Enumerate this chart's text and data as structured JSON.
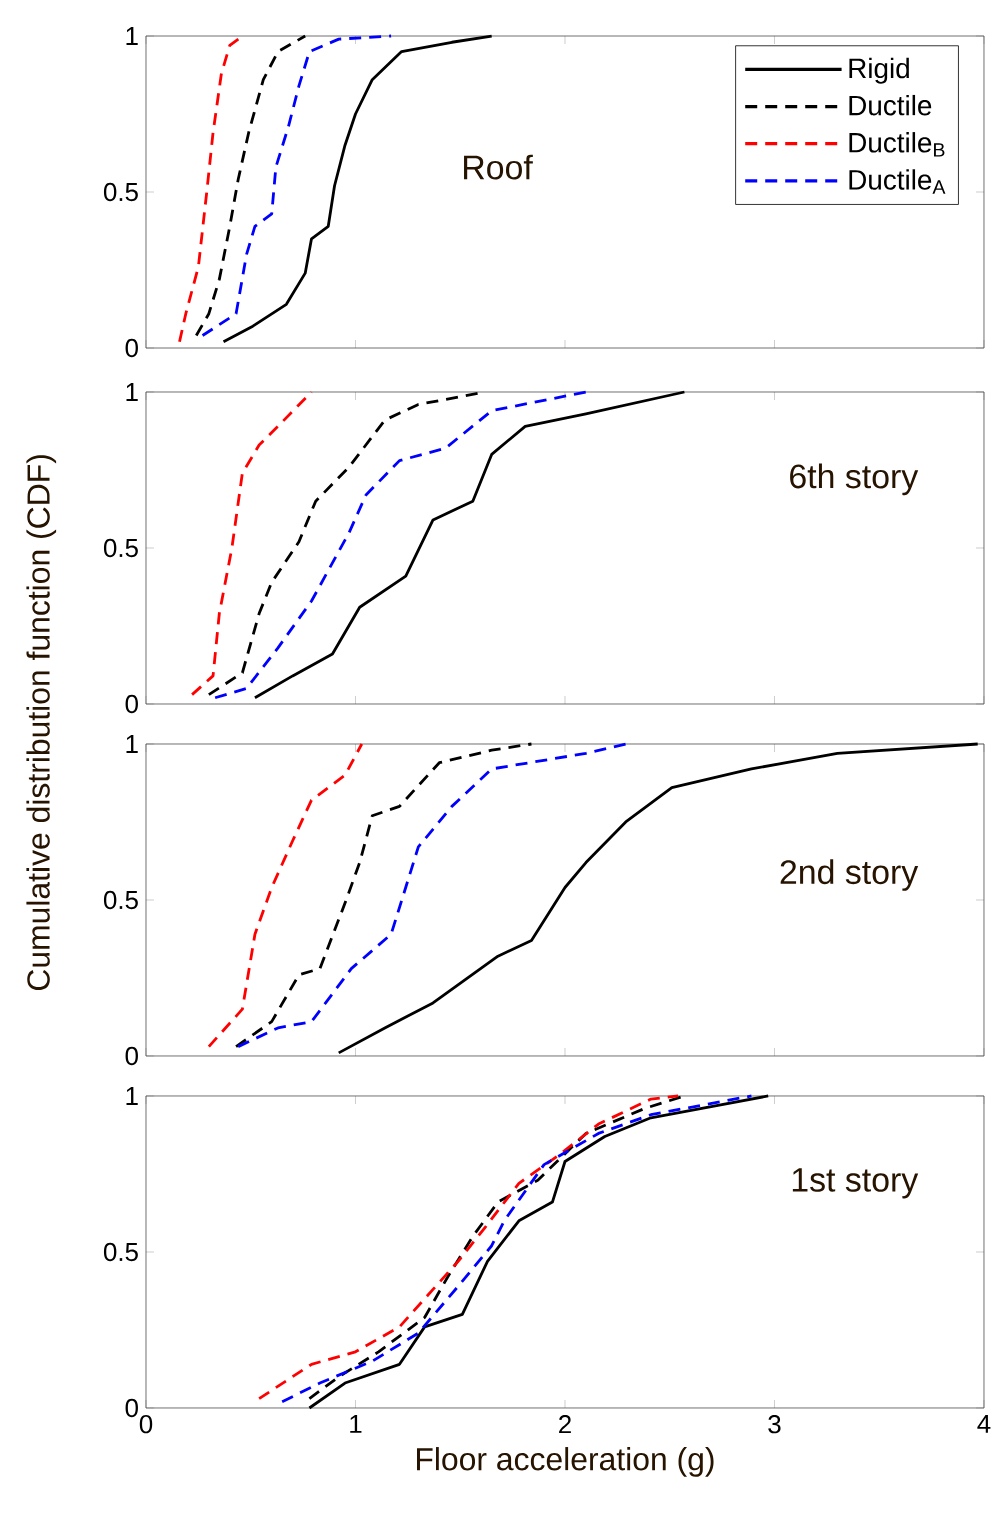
{
  "chart_data": [
    {
      "type": "line",
      "xlim": [
        0,
        4
      ],
      "ylim": [
        0,
        1
      ],
      "xticks": [
        0,
        1,
        2,
        3,
        4
      ],
      "yticks": [
        0,
        0.5,
        1
      ],
      "tick_labels": "y",
      "legend": "top right",
      "line_style": "dashed",
      "ylabel": "Cumulative distribution function (CDF)",
      "annotations": [
        "Roof"
      ],
      "series": [
        {
          "name": "Rigid",
          "color": "#000000",
          "line_style": "solid",
          "x": [
            0.37,
            0.51,
            0.67,
            0.76,
            0.79,
            0.87,
            0.9,
            0.95,
            1.0,
            1.08,
            1.22,
            1.46,
            1.65
          ],
          "values": [
            0.02,
            0.07,
            0.14,
            0.24,
            0.35,
            0.39,
            0.52,
            0.65,
            0.75,
            0.86,
            0.95,
            0.98,
            1.0
          ]
        },
        {
          "name": "Ductile",
          "color": "#000000",
          "x": [
            0.24,
            0.3,
            0.35,
            0.4,
            0.44,
            0.49,
            0.56,
            0.63,
            0.76
          ],
          "values": [
            0.04,
            0.11,
            0.22,
            0.39,
            0.54,
            0.69,
            0.86,
            0.95,
            1.0
          ]
        },
        {
          "name": "Ductile$_{B}$",
          "color": "#ff0000",
          "x": [
            0.16,
            0.19,
            0.25,
            0.29,
            0.32,
            0.36,
            0.4,
            0.46
          ],
          "values": [
            0.02,
            0.11,
            0.26,
            0.5,
            0.69,
            0.88,
            0.97,
            1.0
          ]
        },
        {
          "name": "Ductile$_{A}$",
          "color": "#0000ff",
          "x": [
            0.27,
            0.43,
            0.48,
            0.52,
            0.6,
            0.62,
            0.68,
            0.73,
            0.78,
            0.92,
            1.17
          ],
          "values": [
            0.04,
            0.11,
            0.3,
            0.39,
            0.43,
            0.58,
            0.71,
            0.84,
            0.95,
            0.99,
            1.0
          ]
        }
      ]
    },
    {
      "type": "line",
      "xlim": [
        0,
        4
      ],
      "ylim": [
        0,
        1
      ],
      "xticks": [
        0,
        1,
        2,
        3,
        4
      ],
      "yticks": [
        0,
        0.5,
        1
      ],
      "tick_labels": "y",
      "line_style": "dashed",
      "annotations": [
        "6th story"
      ],
      "series": [
        {
          "color": "#000000",
          "line_style": "solid",
          "x": [
            0.52,
            0.7,
            0.89,
            1.02,
            1.24,
            1.37,
            1.56,
            1.65,
            1.81,
            2.1,
            2.57
          ],
          "values": [
            0.02,
            0.09,
            0.16,
            0.31,
            0.41,
            0.59,
            0.65,
            0.8,
            0.89,
            0.93,
            1.0
          ]
        },
        {
          "color": "#000000",
          "x": [
            0.3,
            0.46,
            0.54,
            0.6,
            0.73,
            0.81,
            0.97,
            1.14,
            1.3,
            1.62
          ],
          "values": [
            0.03,
            0.1,
            0.29,
            0.39,
            0.52,
            0.65,
            0.76,
            0.91,
            0.96,
            1.0
          ]
        },
        {
          "color": "#ff0000",
          "x": [
            0.22,
            0.32,
            0.35,
            0.41,
            0.46,
            0.54,
            0.63,
            0.79
          ],
          "values": [
            0.03,
            0.09,
            0.29,
            0.5,
            0.74,
            0.83,
            0.89,
            1.0
          ]
        },
        {
          "color": "#0000ff",
          "x": [
            0.33,
            0.48,
            0.63,
            0.79,
            0.97,
            1.05,
            1.21,
            1.43,
            1.65,
            2.1
          ],
          "values": [
            0.02,
            0.05,
            0.18,
            0.33,
            0.55,
            0.67,
            0.78,
            0.82,
            0.94,
            1.0
          ]
        }
      ]
    },
    {
      "type": "line",
      "xlim": [
        0,
        4
      ],
      "ylim": [
        0,
        1
      ],
      "xticks": [
        0,
        1,
        2,
        3,
        4
      ],
      "yticks": [
        0,
        0.5,
        1
      ],
      "tick_labels": "y",
      "line_style": "dashed",
      "annotations": [
        "2nd story"
      ],
      "series": [
        {
          "color": "#000000",
          "line_style": "solid",
          "x": [
            0.92,
            1.14,
            1.37,
            1.68,
            1.84,
            2.0,
            2.1,
            2.29,
            2.51,
            2.89,
            3.3,
            3.97
          ],
          "values": [
            0.01,
            0.09,
            0.17,
            0.32,
            0.37,
            0.54,
            0.62,
            0.75,
            0.86,
            0.92,
            0.97,
            1.0
          ]
        },
        {
          "color": "#000000",
          "x": [
            0.43,
            0.6,
            0.73,
            0.83,
            0.95,
            1.02,
            1.08,
            1.21,
            1.4,
            1.65,
            1.84
          ],
          "values": [
            0.03,
            0.11,
            0.26,
            0.28,
            0.49,
            0.62,
            0.77,
            0.8,
            0.94,
            0.98,
            1.0
          ]
        },
        {
          "color": "#ff0000",
          "x": [
            0.3,
            0.46,
            0.52,
            0.6,
            0.7,
            0.79,
            0.95,
            1.03
          ],
          "values": [
            0.03,
            0.15,
            0.39,
            0.54,
            0.69,
            0.82,
            0.9,
            1.0
          ]
        },
        {
          "color": "#0000ff",
          "x": [
            0.44,
            0.63,
            0.79,
            0.98,
            1.17,
            1.3,
            1.46,
            1.65,
            2.1,
            2.29
          ],
          "values": [
            0.03,
            0.09,
            0.11,
            0.28,
            0.39,
            0.67,
            0.8,
            0.92,
            0.97,
            1.0
          ]
        }
      ]
    },
    {
      "type": "line",
      "xlim": [
        0,
        4
      ],
      "ylim": [
        0,
        1
      ],
      "xticks": [
        0,
        1,
        2,
        3,
        4
      ],
      "yticks": [
        0,
        0.5,
        1
      ],
      "line_style": "dashed",
      "xlabel": "Floor acceleration (g)",
      "annotations": [
        "1st story"
      ],
      "series": [
        {
          "color": "#000000",
          "line_style": "solid",
          "x": [
            0.78,
            0.95,
            1.21,
            1.33,
            1.51,
            1.63,
            1.78,
            1.94,
            2.0,
            2.19,
            2.41,
            2.73,
            2.97
          ],
          "values": [
            0.0,
            0.08,
            0.14,
            0.26,
            0.3,
            0.47,
            0.6,
            0.66,
            0.79,
            0.87,
            0.93,
            0.97,
            1.0
          ]
        },
        {
          "color": "#000000",
          "x": [
            0.78,
            0.92,
            1.11,
            1.33,
            1.44,
            1.56,
            1.68,
            1.87,
            2.1,
            2.38,
            2.57
          ],
          "values": [
            0.03,
            0.1,
            0.18,
            0.29,
            0.42,
            0.55,
            0.66,
            0.73,
            0.88,
            0.96,
            1.0
          ]
        },
        {
          "color": "#ff0000",
          "x": [
            0.54,
            0.79,
            1.0,
            1.21,
            1.37,
            1.49,
            1.62,
            1.78,
            1.97,
            2.16,
            2.41,
            2.54
          ],
          "values": [
            0.03,
            0.14,
            0.18,
            0.26,
            0.38,
            0.47,
            0.58,
            0.72,
            0.81,
            0.91,
            0.99,
            1.0
          ]
        },
        {
          "color": "#0000ff",
          "x": [
            0.65,
            0.83,
            1.08,
            1.3,
            1.49,
            1.65,
            1.71,
            1.9,
            2.16,
            2.41,
            2.89
          ],
          "values": [
            0.02,
            0.08,
            0.15,
            0.24,
            0.39,
            0.52,
            0.6,
            0.78,
            0.88,
            0.94,
            1.0
          ]
        }
      ]
    }
  ]
}
